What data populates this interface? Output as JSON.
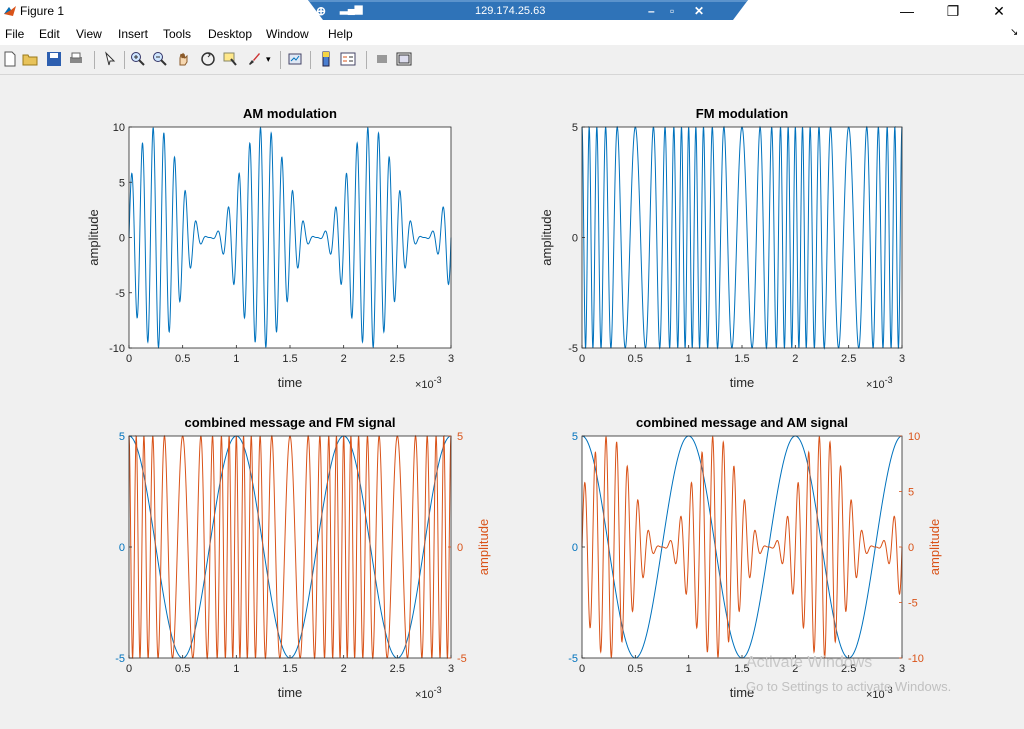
{
  "window": {
    "title": "Figure 1",
    "remote_host": "129.174.25.63",
    "minimize_glyph": "—",
    "restore_glyph": "❐",
    "close_glyph": "✕"
  },
  "menu": [
    "File",
    "Edit",
    "View",
    "Insert",
    "Tools",
    "Desktop",
    "Window",
    "Help"
  ],
  "toolbar_icons": [
    "new-figure-icon",
    "open-file-icon",
    "save-icon",
    "print-icon",
    "pointer-icon",
    "zoom-in-icon",
    "zoom-out-icon",
    "pan-icon",
    "rotate-3d-icon",
    "data-cursor-icon",
    "brush-icon",
    "link-plot-icon",
    "colorbar-icon",
    "legend-icon",
    "hide-plot-tools-icon",
    "show-plot-tools-icon"
  ],
  "watermark": {
    "line1": "Activate Windows",
    "line2": "Go to Settings to activate Windows."
  },
  "colors": {
    "blue": "#0072bd",
    "orange": "#d95319"
  },
  "chart_data": [
    {
      "type": "line",
      "title": "AM modulation",
      "xlabel": "time",
      "ylabel": "amplitude",
      "x_exponent": "×10-3",
      "xlim": [
        0,
        0.003
      ],
      "ylim": [
        -10,
        10
      ],
      "xticks": [
        "0",
        "0.5",
        "1",
        "1.5",
        "2",
        "2.5",
        "3"
      ],
      "yticks": [
        "-10",
        "-5",
        "0",
        "5",
        "10"
      ],
      "series": [
        {
          "color": "blue",
          "formula": "AM: (1 + sin(2π·1000t))·5·sin(2π·10000t)",
          "carrier_hz": 10000,
          "message_hz": 1000,
          "amplitude": 10
        }
      ]
    },
    {
      "type": "line",
      "title": "FM modulation",
      "xlabel": "time",
      "ylabel": "amplitude",
      "x_exponent": "×10-3",
      "xlim": [
        0,
        0.003
      ],
      "ylim": [
        -5,
        5
      ],
      "xticks": [
        "0",
        "0.5",
        "1",
        "1.5",
        "2",
        "2.5",
        "3"
      ],
      "yticks": [
        "-5",
        "0",
        "5"
      ],
      "series": [
        {
          "color": "blue",
          "formula": "FM: 5·cos(2π·10000t + 5·sin(2π·1000t))",
          "carrier_hz": 10000,
          "message_hz": 1000,
          "amplitude": 5
        }
      ]
    },
    {
      "type": "line",
      "title": "combined message and FM signal",
      "xlabel": "time",
      "ylabel_right": "amplitude",
      "x_exponent": "×10-3",
      "xlim": [
        0,
        0.003
      ],
      "ylim_left": [
        -5,
        5
      ],
      "ylim_right": [
        -5,
        5
      ],
      "xticks": [
        "0",
        "0.5",
        "1",
        "1.5",
        "2",
        "2.5",
        "3"
      ],
      "yticks_left": [
        "-5",
        "0",
        "5"
      ],
      "yticks_right": [
        "-5",
        "0",
        "5"
      ],
      "series": [
        {
          "color": "blue",
          "axis": "left",
          "formula": "message: 5·cos(2π·1000t)",
          "message_hz": 1000,
          "amplitude": 5
        },
        {
          "color": "orange",
          "axis": "right",
          "formula": "FM: 5·cos(2π·10000t + 5·sin(2π·1000t))",
          "carrier_hz": 10000,
          "amplitude": 5
        }
      ]
    },
    {
      "type": "line",
      "title": "combined message and AM signal",
      "xlabel": "time",
      "ylabel_right": "amplitude",
      "x_exponent": "×10-3",
      "xlim": [
        0,
        0.003
      ],
      "ylim_left": [
        -5,
        5
      ],
      "ylim_right": [
        -10,
        10
      ],
      "xticks": [
        "0",
        "0.5",
        "1",
        "1.5",
        "2",
        "2.5",
        "3"
      ],
      "yticks_left": [
        "-5",
        "0",
        "5"
      ],
      "yticks_right": [
        "-10",
        "-5",
        "0",
        "5",
        "10"
      ],
      "series": [
        {
          "color": "blue",
          "axis": "left",
          "formula": "message: 5·cos(2π·1000t)",
          "message_hz": 1000,
          "amplitude": 5
        },
        {
          "color": "orange",
          "axis": "right",
          "formula": "AM: (1 + sin(2π·1000t))·5·sin(2π·10000t)",
          "carrier_hz": 10000,
          "amplitude": 10
        }
      ]
    }
  ]
}
